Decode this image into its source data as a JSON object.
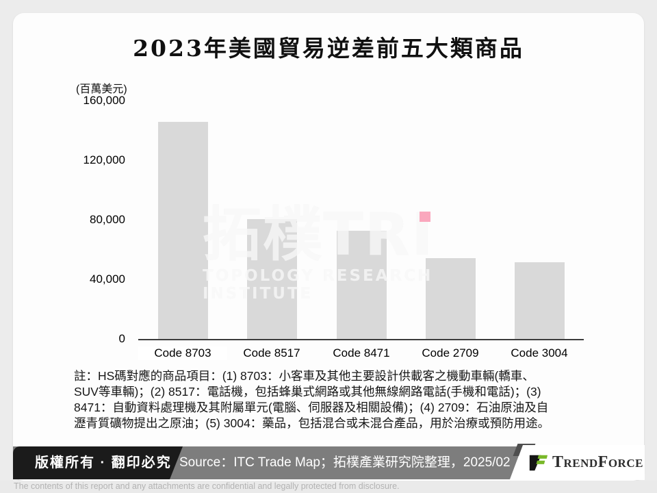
{
  "page": {
    "background_color": "#ececec",
    "card_color": "#fdfdfd"
  },
  "chart_data": {
    "type": "bar",
    "title": "2023年美國貿易逆差前五大類商品",
    "unit_label": "(百萬美元)",
    "categories": [
      "Code 8703",
      "Code 8517",
      "Code 8471",
      "Code 2709",
      "Code 3004"
    ],
    "values": [
      146500,
      80800,
      73000,
      54800,
      52200
    ],
    "bar_color": "#d9d9d9",
    "ylim": [
      0,
      160000
    ],
    "ytick_interval": 40000,
    "yticks": [
      "160,000",
      "120,000",
      "80,000",
      "40,000",
      "0"
    ],
    "grid": false,
    "legend": "none",
    "annotation_marker": {
      "category": "Code 2709",
      "value": 82500,
      "color": "#faa7bd"
    }
  },
  "watermark": {
    "main": "拓樸TRI",
    "sub": "TOPOLOGY RESEARCH INSTITUTE"
  },
  "note": {
    "lines": [
      "註：HS碼對應的商品項目：(1) 8703：小客車及其他主要設計供載客之機動車輛(轎車、",
      "SUV等車輛)；(2) 8517：電話機，包括蜂巢式網路或其他無線網路電話(手機和電話)；(3)",
      "8471：自動資料處理機及其附屬單元(電腦、伺服器及相關設備)；(4) 2709：石油原油及自",
      "瀝青質礦物提出之原油；(5) 3004：藥品，包括混合或未混合產品，用於治療或預防用途。"
    ]
  },
  "footer": {
    "copyright": "版權所有 · 翻印必究",
    "source": "Source：ITC Trade Map；拓樸產業研究院整理，2025/02",
    "brand": "TrendForce",
    "disclaimer": "The contents of this report and any attachments are confidential and legally protected from disclosure.",
    "colors": {
      "copyright_bg": "#1b1b1b",
      "source_bg": "#7d7d7d",
      "brand_green": "#79b829",
      "brand_dark": "#2d2d2d"
    }
  }
}
